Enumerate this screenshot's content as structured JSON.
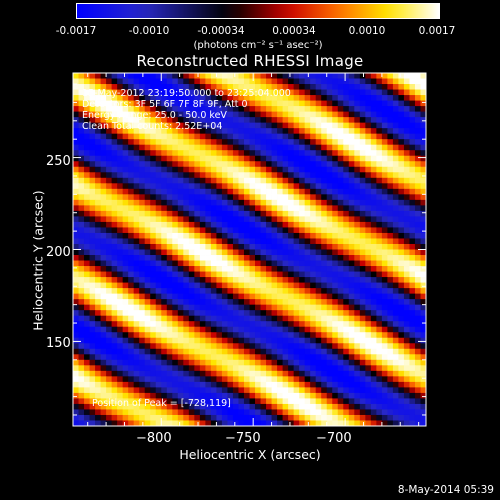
{
  "colorbar": {
    "ticks": [
      "-0.0017",
      "-0.0010",
      "-0.00034",
      "0.00034",
      "0.0010",
      "0.0017"
    ],
    "unit": "(photons cm⁻² s⁻¹ asec⁻²)"
  },
  "info": {
    "time": "15-May-2012 23:19:50.000 to 23:25:04.000",
    "detectors": "Detectors: 3F 5F 6F 7F 8F 9F, Att 0",
    "energy": "Energy Range: 25.0 - 50.0 keV",
    "clean": "Clean    Total counts: 2.52E+04",
    "peak": "Position of Peak = [-728,119]"
  },
  "footer": "8-May-2014 05:39",
  "colors": {
    "low": "#0000ff",
    "mid": "#000000",
    "high": "#ffffff"
  },
  "chart_data": {
    "type": "heatmap",
    "title": "Reconstructed RHESSI Image",
    "xlabel": "Heliocentric X (arcsec)",
    "ylabel": "Heliocentric Y (arcsec)",
    "xlim": [
      -848,
      -656
    ],
    "ylim": [
      104,
      296
    ],
    "xticks": [
      -800,
      -750,
      -700
    ],
    "xtick_labels": [
      "−800",
      "−750",
      "−700"
    ],
    "yticks": [
      150,
      200,
      250
    ],
    "ytick_labels": [
      "150",
      "200",
      "250"
    ],
    "color_range": [
      -0.0017,
      0.0017
    ],
    "colormap": "blue-black-red-yellow-white",
    "pattern": "diagonal fringes oriented down-right, ~46 arcsec spacing",
    "peak": [
      -728,
      119
    ]
  }
}
